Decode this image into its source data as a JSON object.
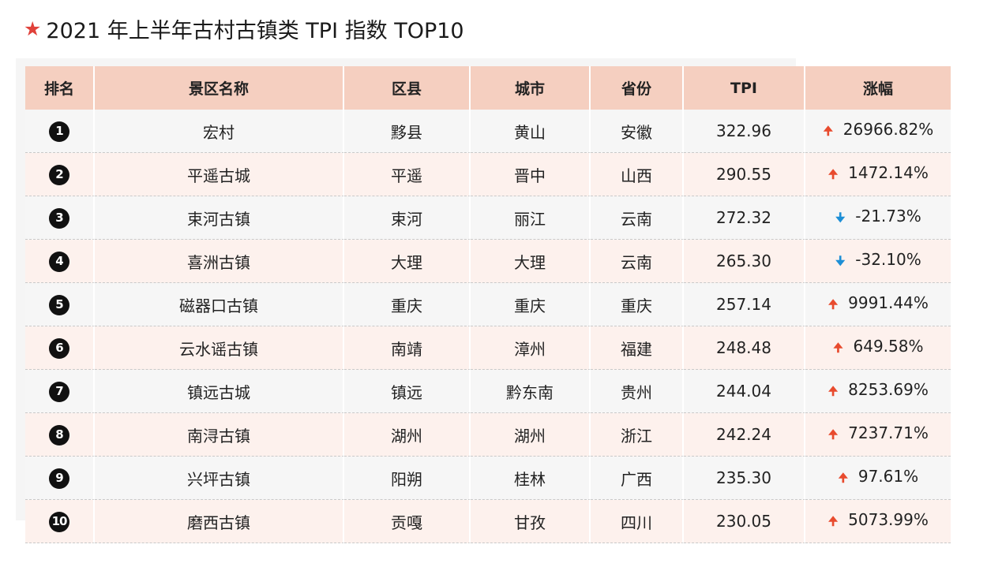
{
  "title": "2021 年上半年古村古镇类 TPI 指数 TOP10",
  "headers": [
    "排名",
    "景区名称",
    "区县",
    "城市",
    "省份",
    "TPI",
    "涨幅"
  ],
  "colors": {
    "star": "#e0413a",
    "header_bg": "#f5cfc0",
    "up": "#e84b2e",
    "down": "#1d8fd6"
  },
  "rows": [
    {
      "rank": "1",
      "name": "宏村",
      "county": "黟县",
      "city": "黄山",
      "province": "安徽",
      "tpi": "322.96",
      "direction": "up",
      "change": "26966.82%"
    },
    {
      "rank": "2",
      "name": "平遥古城",
      "county": "平遥",
      "city": "晋中",
      "province": "山西",
      "tpi": "290.55",
      "direction": "up",
      "change": "1472.14%"
    },
    {
      "rank": "3",
      "name": "束河古镇",
      "county": "束河",
      "city": "丽江",
      "province": "云南",
      "tpi": "272.32",
      "direction": "down",
      "change": "-21.73%"
    },
    {
      "rank": "4",
      "name": "喜洲古镇",
      "county": "大理",
      "city": "大理",
      "province": "云南",
      "tpi": "265.30",
      "direction": "down",
      "change": "-32.10%"
    },
    {
      "rank": "5",
      "name": "磁器口古镇",
      "county": "重庆",
      "city": "重庆",
      "province": "重庆",
      "tpi": "257.14",
      "direction": "up",
      "change": "9991.44%"
    },
    {
      "rank": "6",
      "name": "云水谣古镇",
      "county": "南靖",
      "city": "漳州",
      "province": "福建",
      "tpi": "248.48",
      "direction": "up",
      "change": "649.58%"
    },
    {
      "rank": "7",
      "name": "镇远古城",
      "county": "镇远",
      "city": "黔东南",
      "province": "贵州",
      "tpi": "244.04",
      "direction": "up",
      "change": "8253.69%"
    },
    {
      "rank": "8",
      "name": "南浔古镇",
      "county": "湖州",
      "city": "湖州",
      "province": "浙江",
      "tpi": "242.24",
      "direction": "up",
      "change": "7237.71%"
    },
    {
      "rank": "9",
      "name": "兴坪古镇",
      "county": "阳朔",
      "city": "桂林",
      "province": "广西",
      "tpi": "235.30",
      "direction": "up",
      "change": "97.61%"
    },
    {
      "rank": "10",
      "name": "磨西古镇",
      "county": "贡嘎",
      "city": "甘孜",
      "province": "四川",
      "tpi": "230.05",
      "direction": "up",
      "change": "5073.99%"
    }
  ]
}
